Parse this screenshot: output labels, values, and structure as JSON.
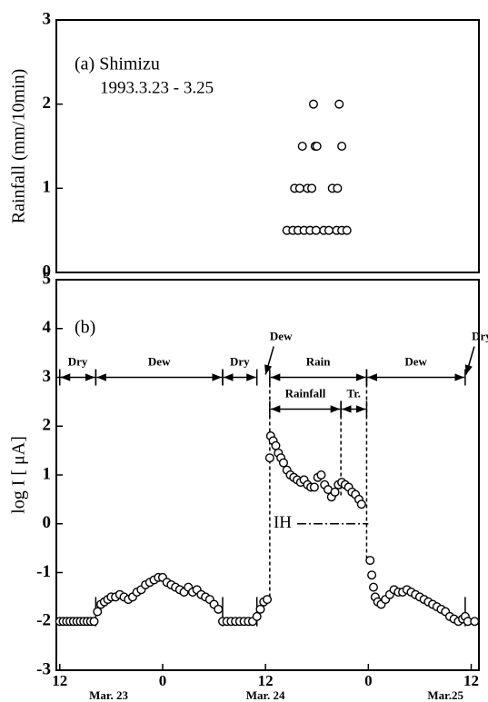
{
  "chart_data": [
    {
      "type": "scatter",
      "title": "(a) Shimizu",
      "subtitle": "1993.3.23 - 3.25",
      "y_label": "Rainfall  (mm/10min)",
      "x": [
        26.5,
        27.2,
        27.8,
        28.5,
        29.2,
        29.9,
        30.8,
        31.4,
        32.3,
        32.9,
        33.5,
        27.4,
        28.0,
        28.9,
        29.4,
        31.8,
        32.4,
        28.3,
        29.8,
        30.0,
        32.9,
        29.6,
        32.6
      ],
      "values": [
        0.5,
        0.5,
        0.5,
        0.5,
        0.5,
        0.5,
        0.5,
        0.5,
        0.5,
        0.5,
        0.5,
        1,
        1,
        1,
        1,
        1,
        1,
        1.5,
        1.5,
        1.5,
        1.5,
        2,
        2
      ],
      "xlim": [
        -0.4,
        48.9
      ],
      "ylim": [
        0,
        3
      ],
      "yticks": [
        0,
        1,
        2,
        3
      ]
    },
    {
      "type": "scatter",
      "title": "(b)",
      "y_label": "log I [ μA]",
      "x": [
        0,
        0.4,
        0.8,
        1.2,
        1.6,
        2.0,
        2.4,
        2.8,
        3.2,
        3.6,
        4.0,
        4.4,
        4.8,
        5.2,
        5.6,
        6.0,
        6.5,
        7.0,
        7.5,
        8.0,
        8.5,
        9.0,
        9.5,
        10.0,
        10.5,
        11.0,
        11.5,
        12.0,
        12.5,
        13.0,
        13.5,
        14.0,
        14.5,
        15.0,
        15.5,
        16.0,
        16.5,
        17.0,
        17.5,
        18.0,
        18.5,
        19,
        19.5,
        20,
        20.5,
        21,
        21.5,
        22,
        22.5,
        23,
        23.4,
        23.8,
        24.2,
        24.5,
        24.6,
        24.9,
        25.2,
        25.5,
        25.8,
        26.1,
        26.5,
        26.9,
        27.3,
        27.7,
        28.1,
        28.5,
        28.9,
        29.3,
        29.7,
        30.1,
        30.5,
        30.9,
        31.3,
        31.7,
        32.1,
        32.5,
        32.9,
        33.3,
        33.7,
        34.1,
        34.5,
        34.9,
        35.2,
        36.2,
        36.4,
        36.6,
        36.8,
        37.1,
        37.5,
        38.0,
        38.5,
        39.0,
        39.5,
        40.0,
        40.5,
        41.0,
        41.5,
        42.0,
        42.5,
        43.0,
        43.5,
        44.0,
        44.5,
        45.0,
        45.5,
        46.0,
        46.5,
        47.0,
        47.3,
        47.6,
        48.4
      ],
      "values": [
        -2,
        -2,
        -2,
        -2,
        -2,
        -2,
        -2,
        -2,
        -2,
        -2,
        -2,
        -1.8,
        -1.65,
        -1.6,
        -1.55,
        -1.5,
        -1.5,
        -1.45,
        -1.5,
        -1.55,
        -1.5,
        -1.4,
        -1.35,
        -1.25,
        -1.2,
        -1.15,
        -1.1,
        -1.1,
        -1.2,
        -1.25,
        -1.3,
        -1.35,
        -1.4,
        -1.3,
        -1.4,
        -1.35,
        -1.45,
        -1.5,
        -1.55,
        -1.65,
        -1.75,
        -2,
        -2,
        -2,
        -2,
        -2,
        -2,
        -2,
        -2,
        -1.9,
        -1.75,
        -1.6,
        -1.55,
        1.35,
        1.8,
        1.7,
        1.6,
        1.45,
        1.35,
        1.25,
        1.1,
        1.0,
        0.95,
        0.9,
        0.85,
        0.9,
        0.8,
        0.75,
        0.75,
        0.95,
        1.0,
        0.8,
        0.7,
        0.55,
        0.65,
        0.8,
        0.85,
        0.8,
        0.75,
        0.65,
        0.6,
        0.5,
        0.4,
        -0.75,
        -1.05,
        -1.3,
        -1.5,
        -1.6,
        -1.65,
        -1.55,
        -1.45,
        -1.35,
        -1.4,
        -1.4,
        -1.35,
        -1.4,
        -1.45,
        -1.5,
        -1.55,
        -1.6,
        -1.65,
        -1.7,
        -1.75,
        -1.8,
        -1.9,
        -1.95,
        -2.0,
        -1.95,
        -1.9,
        -2.0,
        -2.0
      ],
      "xlim": [
        -0.4,
        48.9
      ],
      "ylim": [
        -3,
        5
      ],
      "yticks": [
        -3,
        -2,
        -1,
        0,
        1,
        2,
        3,
        4,
        5
      ],
      "xticks": [
        {
          "value": 0,
          "label": "12"
        },
        {
          "value": 12,
          "label": "0"
        },
        {
          "value": 24,
          "label": "12"
        },
        {
          "value": 36,
          "label": "0"
        },
        {
          "value": 48,
          "label": "12"
        }
      ],
      "date_labels": [
        {
          "x": 5.7,
          "label": "Mar. 23"
        },
        {
          "x": 24,
          "label": "Mar. 24"
        },
        {
          "x": 45,
          "label": "Mar.25"
        }
      ],
      "periods": [
        {
          "label": "Dry",
          "start": 0,
          "end": 4.2,
          "y": 3
        },
        {
          "label": "Dew",
          "start": 4.2,
          "end": 19,
          "y": 3
        },
        {
          "label": "Dry",
          "start": 19,
          "end": 23,
          "y": 3
        },
        {
          "label": "Rain",
          "start": 24.5,
          "end": 35.8,
          "y": 3
        },
        {
          "label": "Dew",
          "start": 35.8,
          "end": 47.3,
          "y": 3
        },
        {
          "label": "Rainfall",
          "start": 24.5,
          "end": 32.8,
          "y": 2.35
        },
        {
          "label": "Tr.",
          "start": 32.8,
          "end": 35.8,
          "y": 2.35
        }
      ],
      "callouts": [
        {
          "label": "Dew",
          "x": 23.9,
          "y": 3
        },
        {
          "label": "Dry",
          "x": 47.3,
          "y": 3
        }
      ],
      "dashed_lines": [
        {
          "x": 24.5,
          "from": 3,
          "to": -1.5
        },
        {
          "x": 32.8,
          "from": 2.35,
          "to": 0.55
        },
        {
          "x": 35.8,
          "from": 3,
          "to": -0.7
        }
      ],
      "boundary_bars": [
        4.2,
        19,
        23,
        47.3
      ],
      "threshold": {
        "label": "IH",
        "start": 27.7,
        "end": 36,
        "y": 0
      }
    }
  ]
}
